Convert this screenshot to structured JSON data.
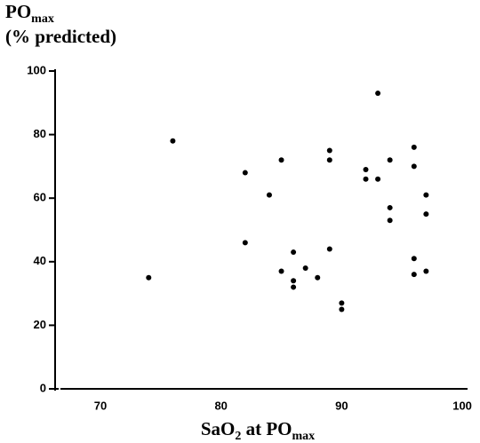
{
  "chart_data": {
    "type": "scatter",
    "y_label": {
      "main": "PO",
      "sub": "max",
      "line2": "(% predicted)"
    },
    "x_label": {
      "parts": [
        {
          "text": "SaO"
        },
        {
          "text": "2",
          "sub": true
        },
        {
          "text": " at PO"
        },
        {
          "text": "max",
          "sub": true
        }
      ]
    },
    "x": [
      74,
      76,
      82,
      82,
      84,
      85,
      85,
      86,
      86,
      86,
      87,
      88,
      89,
      89,
      89,
      90,
      90,
      92,
      92,
      93,
      93,
      94,
      94,
      94,
      96,
      96,
      96,
      96,
      97,
      97,
      97
    ],
    "values": [
      35,
      78,
      68,
      46,
      61,
      72,
      37,
      43,
      34,
      32,
      38,
      35,
      75,
      72,
      44,
      27,
      25,
      69,
      66,
      66,
      93,
      72,
      57,
      53,
      76,
      70,
      41,
      36,
      61,
      55,
      37
    ],
    "color": "#000000",
    "xlim": [
      66.5,
      100.4
    ],
    "xticks": [
      70,
      80,
      90,
      100
    ],
    "ylim": [
      0,
      100
    ],
    "yticks": [
      0,
      20,
      40,
      60,
      80,
      100
    ]
  }
}
